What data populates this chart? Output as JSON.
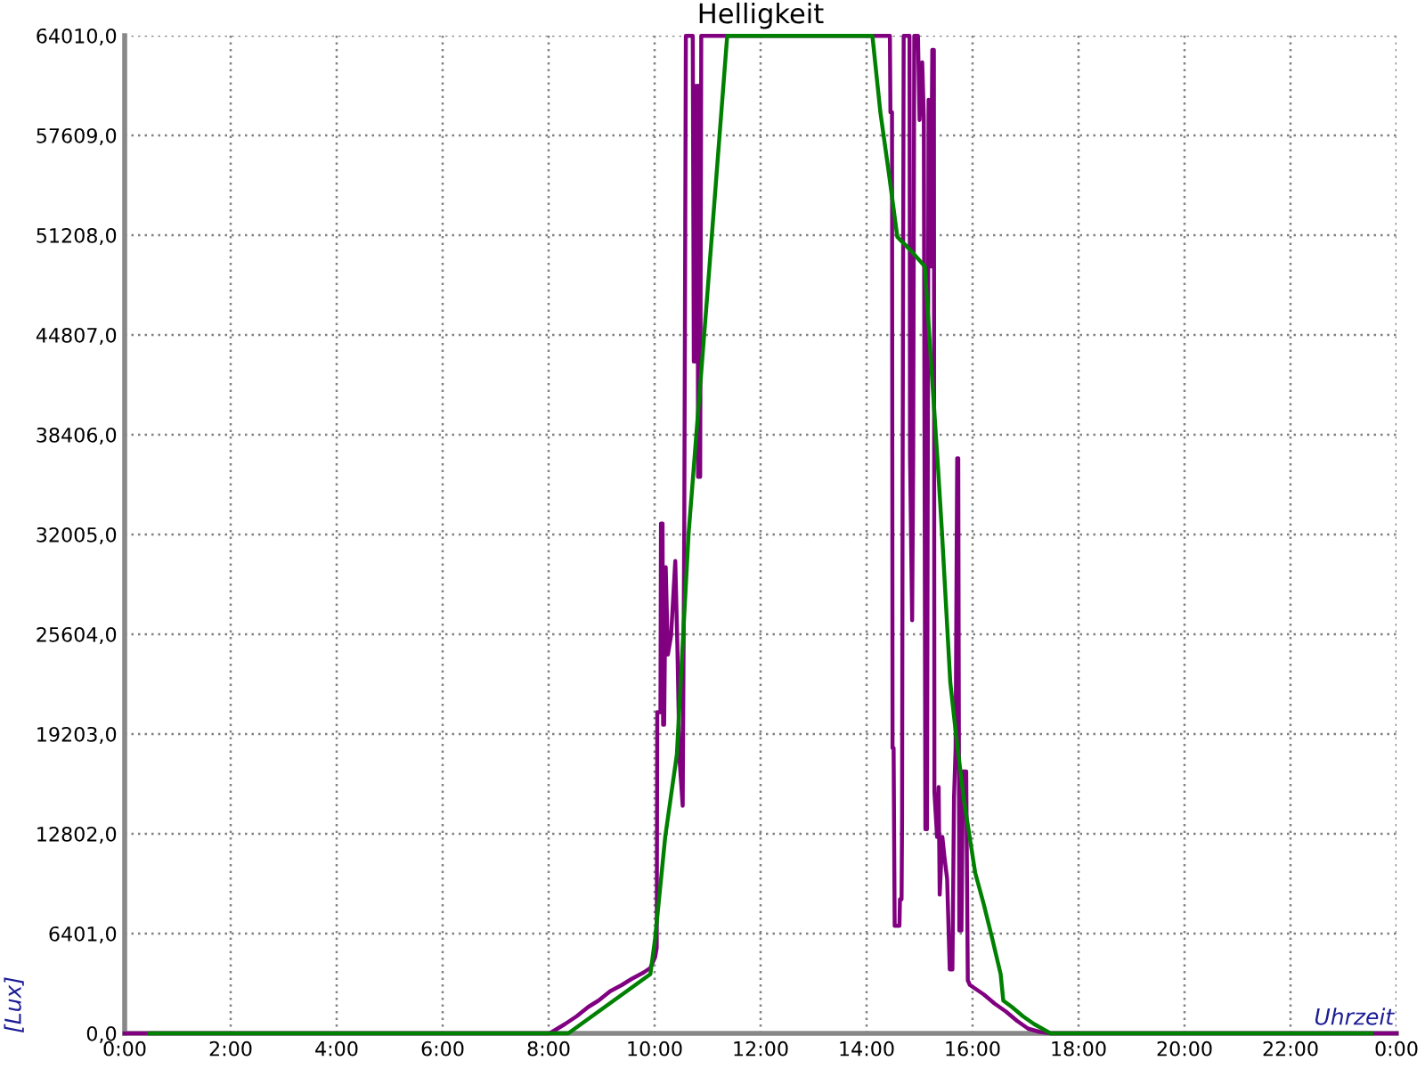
{
  "chart_data": {
    "type": "line",
    "title": "Helligkeit",
    "xlabel": "Uhrzeit",
    "ylabel": "[Lux]",
    "xlim": [
      0,
      24
    ],
    "xticks": [
      {
        "value": 0,
        "label": "0:00"
      },
      {
        "value": 2,
        "label": "2:00"
      },
      {
        "value": 4,
        "label": "4:00"
      },
      {
        "value": 6,
        "label": "6:00"
      },
      {
        "value": 8,
        "label": "8:00"
      },
      {
        "value": 10,
        "label": "10:00"
      },
      {
        "value": 12,
        "label": "12:00"
      },
      {
        "value": 14,
        "label": "14:00"
      },
      {
        "value": 16,
        "label": "16:00"
      },
      {
        "value": 18,
        "label": "18:00"
      },
      {
        "value": 20,
        "label": "20:00"
      },
      {
        "value": 22,
        "label": "22:00"
      },
      {
        "value": 24,
        "label": "0:00"
      }
    ],
    "ylim": [
      0,
      64010
    ],
    "yticks": [
      {
        "value": 0,
        "label": "0,0"
      },
      {
        "value": 6401,
        "label": "6401,0"
      },
      {
        "value": 12802,
        "label": "12802,0"
      },
      {
        "value": 19203,
        "label": "19203,0"
      },
      {
        "value": 25604,
        "label": "25604,0"
      },
      {
        "value": 32005,
        "label": "32005,0"
      },
      {
        "value": 38406,
        "label": "38406,0"
      },
      {
        "value": 44807,
        "label": "44807,0"
      },
      {
        "value": 51208,
        "label": "51208,0"
      },
      {
        "value": 57609,
        "label": "57609,0"
      },
      {
        "value": 64010,
        "label": "64010,0"
      }
    ],
    "grid": true,
    "line_style": "solid",
    "series": [
      {
        "color": "#800080",
        "x": [
          0,
          8.02,
          8.31,
          8.53,
          8.75,
          8.94,
          9.16,
          9.38,
          9.57,
          9.79,
          9.92,
          10.01,
          10.04,
          10.05,
          10.11,
          10.12,
          10.15,
          10.16,
          10.18,
          10.21,
          10.25,
          10.31,
          10.39,
          10.43,
          10.47,
          10.53,
          10.56,
          10.59,
          10.72,
          10.74,
          10.76,
          10.78,
          10.81,
          10.82,
          10.85,
          10.86,
          10.88,
          14.44,
          14.45,
          14.48,
          14.49,
          14.51,
          14.53,
          14.62,
          14.63,
          14.66,
          14.67,
          14.68,
          14.7,
          14.81,
          14.82,
          14.86,
          14.88,
          14.9,
          14.97,
          15.0,
          15.05,
          15.08,
          15.11,
          15.14,
          15.17,
          15.21,
          15.24,
          15.27,
          15.28,
          15.33,
          15.36,
          15.38,
          15.43,
          15.47,
          15.52,
          15.57,
          15.62,
          15.65,
          15.68,
          15.71,
          15.73,
          15.75,
          15.79,
          15.82,
          15.88,
          15.91,
          15.95,
          16.21,
          16.42,
          16.63,
          16.84,
          17.05,
          17.26,
          17.47,
          24
        ],
        "values": [
          0,
          0,
          600,
          1100,
          1700,
          2100,
          2700,
          3100,
          3500,
          3900,
          4200,
          4900,
          5500,
          20600,
          20600,
          32700,
          32700,
          19800,
          19800,
          29900,
          24300,
          25500,
          30300,
          24800,
          17600,
          14600,
          32900,
          64000,
          64000,
          43100,
          60800,
          43100,
          60800,
          35700,
          60800,
          35700,
          64000,
          64000,
          59100,
          59100,
          18300,
          18300,
          6900,
          6900,
          8600,
          8600,
          13800,
          35500,
          64000,
          64000,
          37000,
          26500,
          37000,
          64000,
          64000,
          58600,
          62300,
          58800,
          13100,
          13100,
          59900,
          49200,
          63100,
          63100,
          15500,
          12600,
          15800,
          8900,
          12600,
          11300,
          9900,
          4100,
          4100,
          15100,
          18300,
          36900,
          36900,
          6600,
          6600,
          16800,
          16800,
          3400,
          3100,
          2500,
          1900,
          1400,
          800,
          300,
          100,
          0,
          0
        ]
      },
      {
        "color": "#008000",
        "x": [
          0.47,
          8.37,
          9.92,
          10.01,
          10.2,
          10.42,
          10.64,
          10.99,
          11.37,
          14.11,
          14.26,
          14.42,
          14.58,
          14.84,
          15.1,
          15.21,
          15.35,
          15.42,
          15.58,
          15.69,
          15.84,
          16.05,
          16.21,
          16.37,
          16.53,
          16.58,
          16.74,
          16.95,
          17.16,
          17.47,
          23.53
        ],
        "values": [
          0,
          0,
          3800,
          6100,
          12600,
          17900,
          32000,
          47200,
          64000,
          64000,
          59100,
          55200,
          51100,
          50200,
          49200,
          43400,
          36200,
          32300,
          22500,
          19100,
          14900,
          10300,
          8300,
          6100,
          3800,
          2100,
          1700,
          1100,
          600,
          0,
          0
        ]
      }
    ]
  }
}
